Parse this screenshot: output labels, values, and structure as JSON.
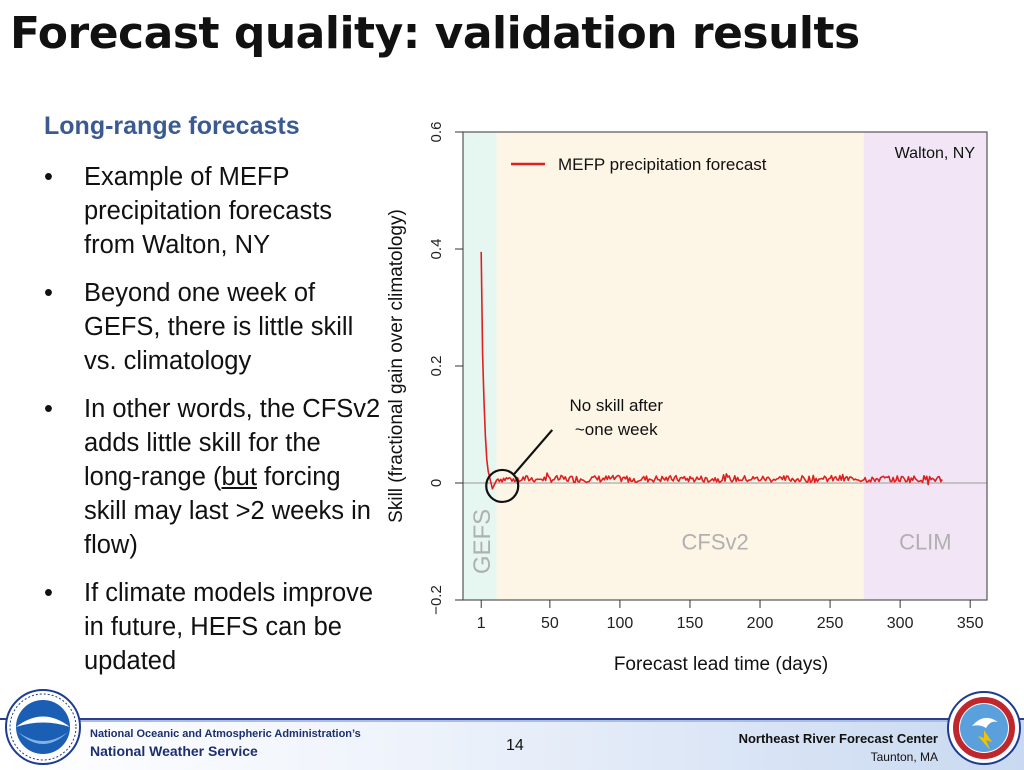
{
  "slide": {
    "title": "Forecast quality: validation results",
    "subhead": "Long-range forecasts",
    "bullets": [
      {
        "pre": "Example of MEFP precipitation forecasts from Walton, NY",
        "u": "",
        "post": ""
      },
      {
        "pre": "Beyond one week of GEFS, there is little skill vs. climatology",
        "u": "",
        "post": ""
      },
      {
        "pre": "In other words, the CFSv2 adds little skill for the long-range (",
        "u": "but",
        "post": " forcing skill may last >2 weeks in flow)"
      },
      {
        "pre": "If climate models improve in future, HEFS can be updated",
        "u": "",
        "post": ""
      }
    ]
  },
  "chart_data": {
    "type": "line",
    "title": "",
    "xlabel": "Forecast lead time (days)",
    "ylabel": "Skill (fractional gain over climatology)",
    "xlim": [
      -12,
      362
    ],
    "ylim": [
      -0.2,
      0.6
    ],
    "xticks": [
      1,
      50,
      100,
      150,
      200,
      250,
      300,
      350
    ],
    "yticks": [
      -0.2,
      0,
      0.2,
      0.4,
      0.6
    ],
    "ytick_labels": [
      "−0.2",
      "0",
      "0.2",
      "0.4",
      "0.6"
    ],
    "legend": {
      "label": "MEFP precipitation forecast",
      "placement": "top-center"
    },
    "location_label": "Walton, NY",
    "regions": [
      {
        "label": "GEFS",
        "from": -12,
        "to": 12,
        "color": "#e6f6f1",
        "label_color": "#b0b0b0"
      },
      {
        "label": "CFSv2",
        "from": 12,
        "to": 274,
        "color": "#fdf6e6",
        "label_color": "#b0b0b0"
      },
      {
        "label": "CLIM",
        "from": 274,
        "to": 362,
        "color": "#f2e6f6",
        "label_color": "#b0b0b0"
      }
    ],
    "annotation": {
      "lines": [
        "No skill after",
        "~one week"
      ],
      "x": 16,
      "y": -0.005
    },
    "series": [
      {
        "name": "MEFP precipitation forecast",
        "color": "#e02020",
        "x": [
          1,
          2,
          3,
          4,
          5,
          6,
          7,
          8,
          9,
          10,
          11,
          12
        ],
        "y": [
          0.395,
          0.22,
          0.14,
          0.08,
          0.04,
          0.02,
          0.01,
          0.0,
          -0.01,
          -0.005,
          0.0,
          0.005
        ],
        "tail": {
          "from": 13,
          "to": 330,
          "step": 1,
          "mean": 0.007,
          "amplitude": 0.006
        }
      }
    ]
  },
  "footer": {
    "agency_line1": "National Oceanic and Atmospheric Administration’s",
    "agency_line2": "National Weather Service",
    "page_number": "14",
    "office": "Northeast River Forecast Center",
    "location": "Taunton, MA"
  },
  "logos": {
    "left": "noaa-logo",
    "right": "nws-logo"
  },
  "colors": {
    "title": "#111111",
    "subhead": "#3b5a92",
    "footer_text": "#1c2f6e",
    "series": "#e02020"
  }
}
